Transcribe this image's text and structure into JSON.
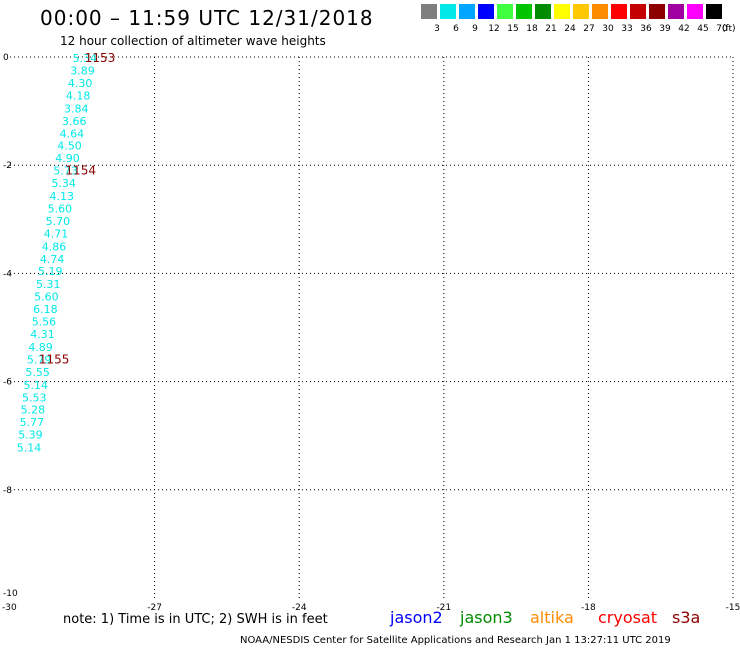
{
  "header": {
    "title": "00:00 – 11:59 UTC 12/31/2018",
    "subtitle": "12 hour collection of altimeter wave heights"
  },
  "color_scale": {
    "labels": [
      "3",
      "6",
      "9",
      "12",
      "15",
      "18",
      "21",
      "24",
      "27",
      "30",
      "33",
      "36",
      "39",
      "42",
      "45",
      "70"
    ],
    "unit": "(ft)",
    "colors": [
      "#7f7f7f",
      "#00e8e8",
      "#00a6ff",
      "#0000ff",
      "#40ff40",
      "#00c400",
      "#008c00",
      "#ffff00",
      "#ffc800",
      "#ff8c00",
      "#ff0000",
      "#c40000",
      "#8c0000",
      "#a000a0",
      "#ff00ff",
      "#000000"
    ]
  },
  "footer": {
    "note": "note:  1) Time is in UTC;  2) SWH is in feet",
    "satellites": [
      {
        "name": "jason2",
        "color": "#0000ff"
      },
      {
        "name": "jason3",
        "color": "#008c00"
      },
      {
        "name": "altika",
        "color": "#ff8c00"
      },
      {
        "name": "cryosat",
        "color": "#ff0000"
      },
      {
        "name": "s3a",
        "color": "#8c0000"
      }
    ],
    "credit": "NOAA/NESDIS Center for Satellite Applications and Research     Jan  1 13:27:11 UTC 2019"
  },
  "chart_data": {
    "type": "scatter",
    "title": "00:00 – 11:59 UTC 12/31/2018",
    "xlim": [
      -30,
      -15
    ],
    "ylim": [
      -10,
      0
    ],
    "xticks": [
      "-30",
      "-27",
      "-24",
      "-21",
      "-18",
      "-15"
    ],
    "yticks": [
      "0",
      "-2",
      "-4",
      "-6",
      "-8",
      "-10"
    ],
    "grid": true,
    "point_color": "#00e8e8",
    "time_label_color": "#8c0000",
    "points": [
      {
        "x": -28.7,
        "y": -0.02,
        "label": "5.34"
      },
      {
        "x": -28.75,
        "y": -0.25,
        "label": "3.89"
      },
      {
        "x": -28.8,
        "y": -0.48,
        "label": "4.30"
      },
      {
        "x": -28.84,
        "y": -0.71,
        "label": "4.18"
      },
      {
        "x": -28.88,
        "y": -0.95,
        "label": "3.84"
      },
      {
        "x": -28.92,
        "y": -1.18,
        "label": "3.66"
      },
      {
        "x": -28.97,
        "y": -1.41,
        "label": "4.64"
      },
      {
        "x": -29.02,
        "y": -1.64,
        "label": "4.50"
      },
      {
        "x": -29.06,
        "y": -1.87,
        "label": "4.90"
      },
      {
        "x": -29.1,
        "y": -2.1,
        "label": "5.73"
      },
      {
        "x": -29.14,
        "y": -2.33,
        "label": "5.34"
      },
      {
        "x": -29.18,
        "y": -2.57,
        "label": "4.13"
      },
      {
        "x": -29.22,
        "y": -2.8,
        "label": "5.60"
      },
      {
        "x": -29.26,
        "y": -3.03,
        "label": "5.70"
      },
      {
        "x": -29.3,
        "y": -3.26,
        "label": "4.71"
      },
      {
        "x": -29.34,
        "y": -3.5,
        "label": "4.86"
      },
      {
        "x": -29.38,
        "y": -3.73,
        "label": "4.74"
      },
      {
        "x": -29.42,
        "y": -3.96,
        "label": "5.19"
      },
      {
        "x": -29.46,
        "y": -4.2,
        "label": "5.31"
      },
      {
        "x": -29.5,
        "y": -4.43,
        "label": "5.60"
      },
      {
        "x": -29.52,
        "y": -4.66,
        "label": "6.18"
      },
      {
        "x": -29.55,
        "y": -4.89,
        "label": "5.56"
      },
      {
        "x": -29.58,
        "y": -5.12,
        "label": "4.31"
      },
      {
        "x": -29.62,
        "y": -5.36,
        "label": "4.89"
      },
      {
        "x": -29.65,
        "y": -5.59,
        "label": "5.79"
      },
      {
        "x": -29.68,
        "y": -5.82,
        "label": "5.55"
      },
      {
        "x": -29.72,
        "y": -6.06,
        "label": "5.14"
      },
      {
        "x": -29.75,
        "y": -6.29,
        "label": "5.53"
      },
      {
        "x": -29.78,
        "y": -6.52,
        "label": "5.28"
      },
      {
        "x": -29.8,
        "y": -6.75,
        "label": "5.77"
      },
      {
        "x": -29.83,
        "y": -6.98,
        "label": "5.39"
      },
      {
        "x": -29.86,
        "y": -7.22,
        "label": "5.14"
      }
    ],
    "time_labels": [
      {
        "x": -28.45,
        "y": -0.02,
        "label": "1153"
      },
      {
        "x": -28.85,
        "y": -2.1,
        "label": "1154"
      },
      {
        "x": -29.4,
        "y": -5.59,
        "label": "1155"
      }
    ]
  }
}
